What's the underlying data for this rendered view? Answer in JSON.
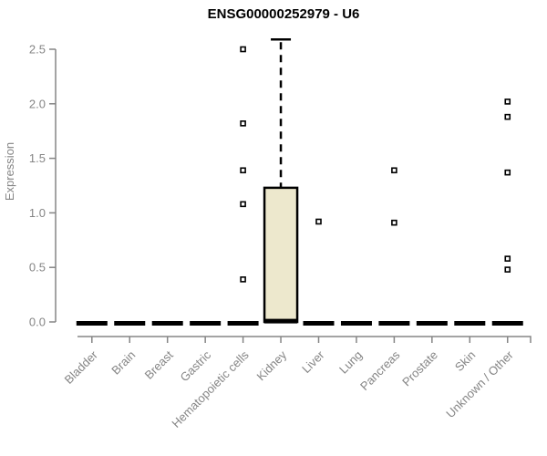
{
  "window": {
    "background": "#ffffff"
  },
  "chart_data": {
    "type": "boxplot",
    "title": "ENSG00000252979 - U6",
    "ylabel": "Expression",
    "xlabel": "",
    "ylim": [
      0,
      2.63
    ],
    "grid": false,
    "legend": "none",
    "yticks": [
      {
        "value": 0.0,
        "label": "0.0"
      },
      {
        "value": 0.5,
        "label": "0.5"
      },
      {
        "value": 1.0,
        "label": "1.0"
      },
      {
        "value": 1.5,
        "label": "1.5"
      },
      {
        "value": 2.0,
        "label": "2.0"
      },
      {
        "value": 2.5,
        "label": "2.5"
      }
    ],
    "categories": [
      "Bladder",
      "Brain",
      "Breast",
      "Gastric",
      "Hematopoietic cells",
      "Kidney",
      "Liver",
      "Lung",
      "Pancreas",
      "Prostate",
      "Skin",
      "Unknown / Other"
    ],
    "series": [
      {
        "category": "Bladder",
        "median": 0,
        "q1": 0,
        "q3": 0,
        "whisker_low": 0,
        "whisker_high": 0,
        "outliers": []
      },
      {
        "category": "Brain",
        "median": 0,
        "q1": 0,
        "q3": 0,
        "whisker_low": 0,
        "whisker_high": 0,
        "outliers": []
      },
      {
        "category": "Breast",
        "median": 0,
        "q1": 0,
        "q3": 0,
        "whisker_low": 0,
        "whisker_high": 0,
        "outliers": []
      },
      {
        "category": "Gastric",
        "median": 0,
        "q1": 0,
        "q3": 0,
        "whisker_low": 0,
        "whisker_high": 0,
        "outliers": []
      },
      {
        "category": "Hematopoietic cells",
        "median": 0,
        "q1": 0,
        "q3": 0,
        "whisker_low": 0,
        "whisker_high": 0,
        "outliers": [
          2.5,
          1.82,
          1.39,
          1.08,
          0.39
        ]
      },
      {
        "category": "Kidney",
        "median": 0.02,
        "q1": 0,
        "q3": 1.23,
        "whisker_low": 0,
        "whisker_high": 2.59,
        "outliers": []
      },
      {
        "category": "Liver",
        "median": 0,
        "q1": 0,
        "q3": 0,
        "whisker_low": 0,
        "whisker_high": 0,
        "outliers": [
          0.92
        ]
      },
      {
        "category": "Lung",
        "median": 0,
        "q1": 0,
        "q3": 0,
        "whisker_low": 0,
        "whisker_high": 0,
        "outliers": []
      },
      {
        "category": "Pancreas",
        "median": 0,
        "q1": 0,
        "q3": 0,
        "whisker_low": 0,
        "whisker_high": 0,
        "outliers": [
          1.39,
          0.91
        ]
      },
      {
        "category": "Prostate",
        "median": 0,
        "q1": 0,
        "q3": 0,
        "whisker_low": 0,
        "whisker_high": 0,
        "outliers": []
      },
      {
        "category": "Skin",
        "median": 0,
        "q1": 0,
        "q3": 0,
        "whisker_low": 0,
        "whisker_high": 0,
        "outliers": []
      },
      {
        "category": "Unknown / Other",
        "median": 0,
        "q1": 0,
        "q3": 0,
        "whisker_low": 0,
        "whisker_high": 0,
        "outliers": [
          2.02,
          1.88,
          1.37,
          0.58,
          0.48
        ]
      }
    ]
  },
  "style": {
    "axis_color": "#858585",
    "label_color": "#858585",
    "title_color": "#000000",
    "box_fill": "#EDE8CD",
    "box_stroke": "#000000",
    "data_color": "#000000",
    "outlier_fill": "#ffffff",
    "background": "#ffffff"
  }
}
